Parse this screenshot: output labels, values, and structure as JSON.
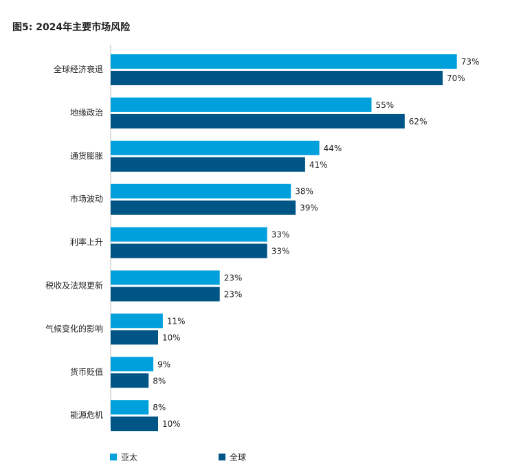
{
  "chart_data": {
    "type": "bar",
    "orientation": "horizontal",
    "title": "图5: 2024年主要市场风险",
    "categories": [
      "全球经济衰退",
      "地缘政治",
      "通货膨胀",
      "市场波动",
      "利率上升",
      "税收及法规更新",
      "气候变化的影响",
      "货币贬值",
      "能源危机"
    ],
    "series": [
      {
        "name": "亚太",
        "color": "#00a0dc",
        "values": [
          73,
          55,
          44,
          38,
          33,
          23,
          11,
          9,
          8
        ],
        "value_labels": [
          "73%",
          "55%",
          "44%",
          "38%",
          "33%",
          "23%",
          "11%",
          "9%",
          "8%"
        ]
      },
      {
        "name": "全球",
        "color": "#005587",
        "values": [
          70,
          62,
          41,
          39,
          33,
          23,
          10,
          8,
          10
        ],
        "value_labels": [
          "70%",
          "62%",
          "41%",
          "39%",
          "33%",
          "23%",
          "10%",
          "8%",
          "10%"
        ]
      }
    ]
  }
}
